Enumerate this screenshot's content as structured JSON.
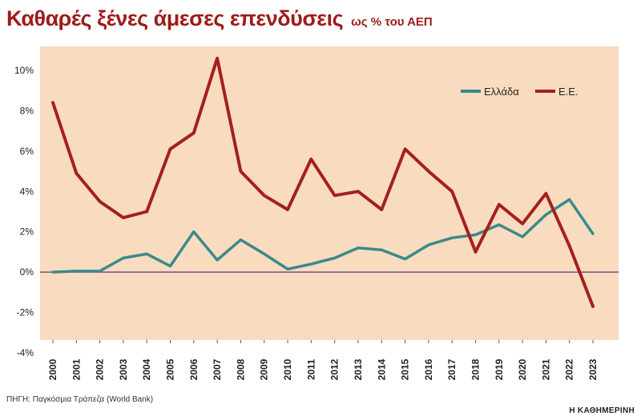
{
  "title": "Καθαρές ξένες άμεσες επενδύσεις",
  "subtitle": "ως % του ΑΕΠ",
  "source": "ΠΗΓΗ: Παγκόσμια Τράπεζα (World Bank)",
  "brand": "Η ΚΑΘΗΜΕΡΙΝΗ",
  "colors": {
    "plot_background": "#f9dcc0",
    "zero_line": "#7a4f86",
    "greece": "#3a8a8a",
    "eu": "#a3211c"
  },
  "chart_data": {
    "type": "line",
    "title": "Καθαρές ξένες άμεσες επενδύσεις",
    "subtitle": "ως % του ΑΕΠ",
    "xlabel": "",
    "ylabel": "",
    "ylim": [
      -4,
      11
    ],
    "yticks": [
      -4,
      -2,
      0,
      2,
      4,
      6,
      8,
      10
    ],
    "ytick_labels": [
      "-4%",
      "-2%",
      "0%",
      "2%",
      "4%",
      "6%",
      "8%",
      "10%"
    ],
    "x": [
      "2000",
      "2001",
      "2002",
      "2003",
      "2004",
      "2005",
      "2006",
      "2007",
      "2008",
      "2009",
      "2010",
      "2011",
      "2012",
      "2013",
      "2014",
      "2015",
      "2016",
      "2017",
      "2018",
      "2019",
      "2020",
      "2021",
      "2022",
      "2023"
    ],
    "grid": false,
    "legend_position": "top-right",
    "series": [
      {
        "name": "Ελλάδα",
        "color": "#3a8a8a",
        "values": [
          0.0,
          0.05,
          0.05,
          0.7,
          0.9,
          0.3,
          2.0,
          0.6,
          1.6,
          0.9,
          0.15,
          0.4,
          0.7,
          1.2,
          1.1,
          0.65,
          1.35,
          1.7,
          1.85,
          2.35,
          1.75,
          2.85,
          3.6,
          1.9
        ]
      },
      {
        "name": "Ε.Ε.",
        "color": "#a3211c",
        "values": [
          8.4,
          4.9,
          3.5,
          2.7,
          3.0,
          6.1,
          6.9,
          10.6,
          5.0,
          3.8,
          3.1,
          5.6,
          3.8,
          4.0,
          3.1,
          6.1,
          5.0,
          4.0,
          1.0,
          3.35,
          2.4,
          3.9,
          1.3,
          -1.7
        ]
      }
    ]
  }
}
